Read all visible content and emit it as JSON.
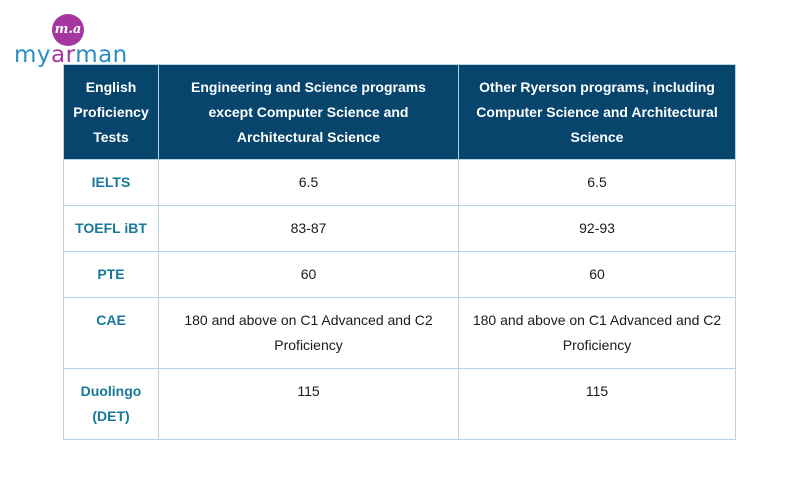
{
  "logo": {
    "mark": "m.a",
    "word_part1": "my",
    "word_part2": "ar",
    "word_part3": "man"
  },
  "table": {
    "headers": [
      "English Proficiency Tests",
      "Engineering and Science programs except Computer Science and Architectural Science",
      "Other Ryerson programs, including Computer Science and Architectural Science"
    ],
    "rows": [
      {
        "test": "IELTS",
        "engineering_science": "6.5",
        "other": "6.5"
      },
      {
        "test": "TOEFL iBT",
        "engineering_science": "83-87",
        "other": "92-93"
      },
      {
        "test": "PTE",
        "engineering_science": "60",
        "other": "60"
      },
      {
        "test": "CAE",
        "engineering_science": "180 and above on C1 Advanced and C2 Proficiency",
        "other": "180 and above on C1 Advanced and C2 Proficiency"
      },
      {
        "test": "Duolingo (DET)",
        "engineering_science": "115",
        "other": "115"
      }
    ]
  },
  "colors": {
    "header_bg": "#07456d",
    "test_name": "#17789b",
    "border": "#b7d3e6",
    "logo_purple": "#a5359f",
    "logo_blue": "#2a8ec4"
  }
}
